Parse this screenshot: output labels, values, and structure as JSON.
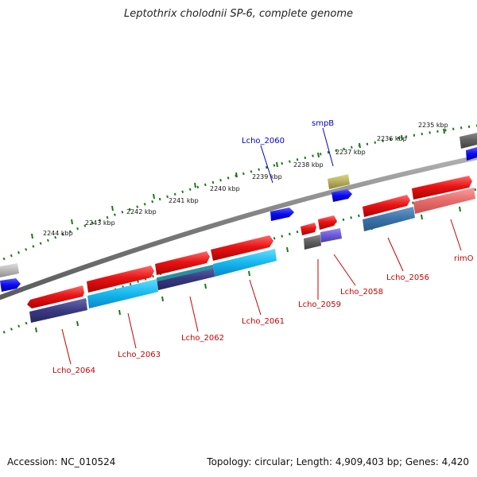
{
  "title": "Leptothrix cholodnii SP-6, complete genome",
  "footer": {
    "accession_label": "Accession:",
    "accession": "NC_010524",
    "topology_label": "Topology:",
    "topology": "circular",
    "length_label": "Length:",
    "length": "4,909,403 bp",
    "genes_label": "Genes:",
    "genes": "4,420"
  },
  "colors": {
    "forward_feature": "#e01010",
    "reverse_cds": "#10b8e8",
    "backbone": "#808080",
    "kbp_ticks": "#1a7a1a",
    "gene_label_reverse": "#cc0000",
    "gene_label_forward": "#0000cc",
    "small_blue": "#0000ee",
    "smpB": "#b8ae5a"
  },
  "kbp_labels": [
    "2235 kbp",
    "2236 kbp",
    "2237 kbp",
    "2238 kbp",
    "2239 kbp",
    "2240 kbp",
    "2241 kbp",
    "2242 kbp",
    "2243 kbp",
    "2244 kbp"
  ],
  "gene_labels_top": [
    "Lcho_2060",
    "smpB"
  ],
  "gene_labels_bottom": [
    "rimO",
    "Lcho_2056",
    "Lcho_2058",
    "Lcho_2059",
    "Lcho_2061",
    "Lcho_2062",
    "Lcho_2063",
    "Lcho_2064"
  ]
}
